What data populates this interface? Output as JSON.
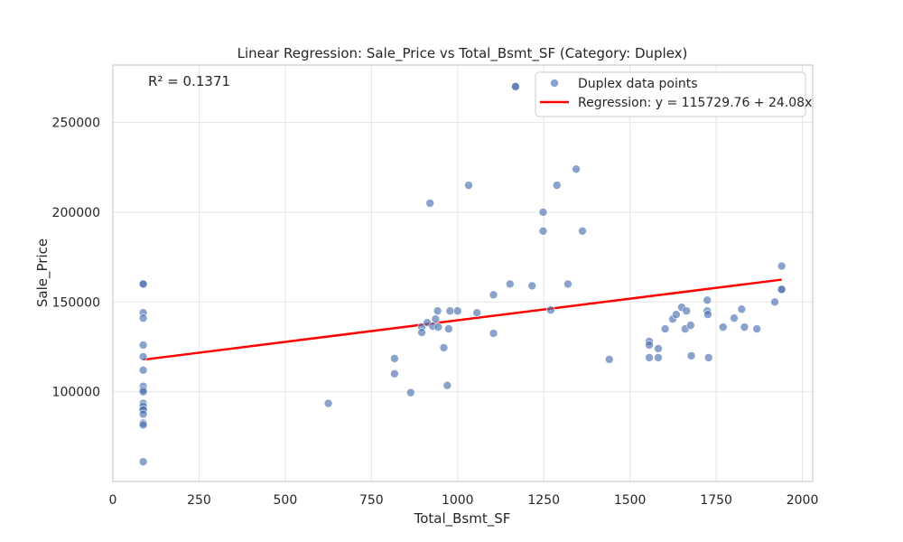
{
  "chart_data": {
    "type": "scatter",
    "title": "Linear Regression: Sale_Price vs Total_Bsmt_SF (Category: Duplex)",
    "xlabel": "Total_Bsmt_SF",
    "ylabel": "Sale_Price",
    "xlim": [
      0,
      2030
    ],
    "ylim": [
      50000,
      282000
    ],
    "xticks": [
      0,
      250,
      500,
      750,
      1000,
      1250,
      1500,
      1750,
      2000
    ],
    "yticks": [
      100000,
      150000,
      200000,
      250000
    ],
    "grid": true,
    "legend_position": "top-right",
    "annotation": "R² = 0.1371",
    "colors": {
      "points": "#4c72b0",
      "regression": "#ff0000",
      "grid": "#e6e6e6",
      "frame": "#cccccc"
    },
    "series": [
      {
        "name": "Duplex data points",
        "kind": "scatter",
        "points": [
          [
            88,
            160000
          ],
          [
            88,
            160000
          ],
          [
            88,
            144000
          ],
          [
            88,
            141000
          ],
          [
            88,
            126000
          ],
          [
            88,
            119500
          ],
          [
            88,
            112000
          ],
          [
            88,
            103000
          ],
          [
            88,
            101000
          ],
          [
            88,
            100000
          ],
          [
            88,
            93500
          ],
          [
            88,
            92000
          ],
          [
            88,
            90000
          ],
          [
            88,
            90000
          ],
          [
            88,
            87500
          ],
          [
            88,
            82500
          ],
          [
            88,
            81500
          ],
          [
            88,
            61000
          ],
          [
            625,
            93500
          ],
          [
            817,
            118500
          ],
          [
            817,
            110000
          ],
          [
            864,
            99500
          ],
          [
            896,
            136000
          ],
          [
            896,
            133000
          ],
          [
            912,
            138500
          ],
          [
            920,
            205000
          ],
          [
            928,
            136500
          ],
          [
            936,
            140500
          ],
          [
            942,
            145000
          ],
          [
            944,
            136000
          ],
          [
            960,
            124500
          ],
          [
            970,
            103500
          ],
          [
            974,
            135000
          ],
          [
            978,
            145000
          ],
          [
            1000,
            145000
          ],
          [
            1032,
            215000
          ],
          [
            1056,
            144000
          ],
          [
            1104,
            154000
          ],
          [
            1104,
            132500
          ],
          [
            1152,
            160000
          ],
          [
            1168,
            270000
          ],
          [
            1168,
            270000
          ],
          [
            1216,
            159000
          ],
          [
            1248,
            200000
          ],
          [
            1248,
            189500
          ],
          [
            1270,
            145500
          ],
          [
            1288,
            215000
          ],
          [
            1320,
            160000
          ],
          [
            1344,
            224000
          ],
          [
            1362,
            189500
          ],
          [
            1440,
            118000
          ],
          [
            1556,
            128000
          ],
          [
            1556,
            126000
          ],
          [
            1556,
            119000
          ],
          [
            1582,
            124000
          ],
          [
            1582,
            119000
          ],
          [
            1602,
            135000
          ],
          [
            1624,
            140500
          ],
          [
            1634,
            143000
          ],
          [
            1650,
            147000
          ],
          [
            1660,
            135000
          ],
          [
            1664,
            145000
          ],
          [
            1676,
            137000
          ],
          [
            1678,
            120000
          ],
          [
            1724,
            151000
          ],
          [
            1724,
            145000
          ],
          [
            1726,
            143000
          ],
          [
            1728,
            119000
          ],
          [
            1770,
            136000
          ],
          [
            1802,
            141000
          ],
          [
            1824,
            146000
          ],
          [
            1832,
            136000
          ],
          [
            1868,
            135000
          ],
          [
            1920,
            150000
          ],
          [
            1940,
            170000
          ],
          [
            1940,
            157000
          ],
          [
            1940,
            157000
          ]
        ]
      },
      {
        "name": "Regression: y = 115729.76 + 24.08x",
        "kind": "line",
        "intercept": 115729.76,
        "slope": 24.08,
        "x_range": [
          88,
          1940
        ]
      }
    ]
  }
}
